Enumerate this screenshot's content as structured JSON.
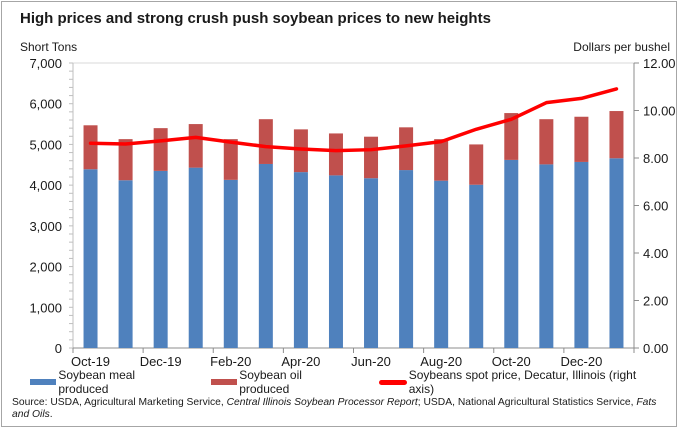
{
  "chart_data": {
    "type": "bar",
    "subtype": "stacked bar with line on secondary axis",
    "title": "High prices and strong crush push soybean prices to new heights",
    "xlabel": "",
    "ylabel": "Short Tons",
    "ylabel_right": "Dollars per bushel",
    "ylim": [
      0,
      7000
    ],
    "ylim_right": [
      0,
      12
    ],
    "yticks": [
      "0",
      "1,000",
      "2,000",
      "3,000",
      "4,000",
      "5,000",
      "6,000",
      "7,000"
    ],
    "yticks_right": [
      "0.00",
      "2.00",
      "4.00",
      "6.00",
      "8.00",
      "10.00",
      "12.00"
    ],
    "categories": [
      "Oct-19",
      "Nov-19",
      "Dec-19",
      "Jan-20",
      "Feb-20",
      "Mar-20",
      "Apr-20",
      "May-20",
      "Jun-20",
      "Jul-20",
      "Aug-20",
      "Sep-20",
      "Oct-20",
      "Nov-20",
      "Dec-20",
      "Jan-21"
    ],
    "xtick_labels": [
      "Oct-19",
      "",
      "Dec-19",
      "",
      "Feb-20",
      "",
      "Apr-20",
      "",
      "Jun-20",
      "",
      "Aug-20",
      "",
      "Oct-20",
      "",
      "Dec-20",
      ""
    ],
    "grid": false,
    "legend_position": "bottom",
    "series": [
      {
        "name": "Soybean meal produced",
        "type": "bar",
        "axis": "left",
        "color": "#4f81bd",
        "values": [
          4390,
          4120,
          4350,
          4430,
          4130,
          4520,
          4320,
          4240,
          4170,
          4370,
          4110,
          4010,
          4620,
          4510,
          4570,
          4660
        ]
      },
      {
        "name": "Soybean oil produced",
        "type": "bar",
        "axis": "left",
        "color": "#c0504d",
        "values": [
          1080,
          1010,
          1050,
          1070,
          1000,
          1100,
          1050,
          1030,
          1020,
          1050,
          1020,
          990,
          1150,
          1110,
          1110,
          1160
        ]
      },
      {
        "name": "Soybeans spot price, Decatur, Illinois (right axis)",
        "type": "line",
        "axis": "right",
        "color": "#ff0000",
        "values": [
          8.62,
          8.59,
          8.72,
          8.87,
          8.67,
          8.48,
          8.38,
          8.31,
          8.35,
          8.51,
          8.69,
          9.21,
          9.63,
          10.33,
          10.51,
          10.91
        ]
      }
    ]
  },
  "source": {
    "prefix": "Source: USDA, Agricultural Marketing Service, ",
    "italic1": "Central Illinois Soybean Processor Report",
    "middle": "; USDA, National Agricultural Statistics Service, ",
    "italic2": "Fats and Oils",
    "suffix": "."
  }
}
